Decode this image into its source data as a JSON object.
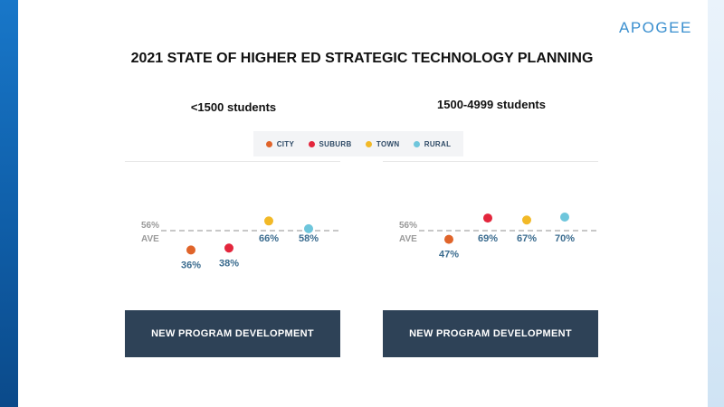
{
  "brand": "APOGEE",
  "title": "2021 STATE OF HIGHER ED STRATEGIC TECHNOLOGY PLANNING",
  "legend": [
    {
      "label": "CITY",
      "color": "#e0642a"
    },
    {
      "label": "SUBURB",
      "color": "#e3263c"
    },
    {
      "label": "TOWN",
      "color": "#f2b927"
    },
    {
      "label": "RURAL",
      "color": "#6ec6dc"
    }
  ],
  "chart_data": [
    {
      "type": "scatter",
      "title": "<1500 students",
      "categories": [
        "CITY",
        "SUBURB",
        "TOWN",
        "RURAL"
      ],
      "values": [
        36,
        38,
        66,
        58
      ],
      "value_labels": [
        "36%",
        "38%",
        "66%",
        "58%"
      ],
      "average": 56,
      "average_label": "56%",
      "average_caption": "AVE",
      "footer": "NEW PROGRAM DEVELOPMENT"
    },
    {
      "type": "scatter",
      "title": "1500-4999 students",
      "categories": [
        "CITY",
        "SUBURB",
        "TOWN",
        "RURAL"
      ],
      "values": [
        47,
        69,
        67,
        70
      ],
      "value_labels": [
        "47%",
        "69%",
        "67%",
        "70%"
      ],
      "average": 56,
      "average_label": "56%",
      "average_caption": "AVE",
      "footer": "NEW PROGRAM DEVELOPMENT"
    }
  ]
}
